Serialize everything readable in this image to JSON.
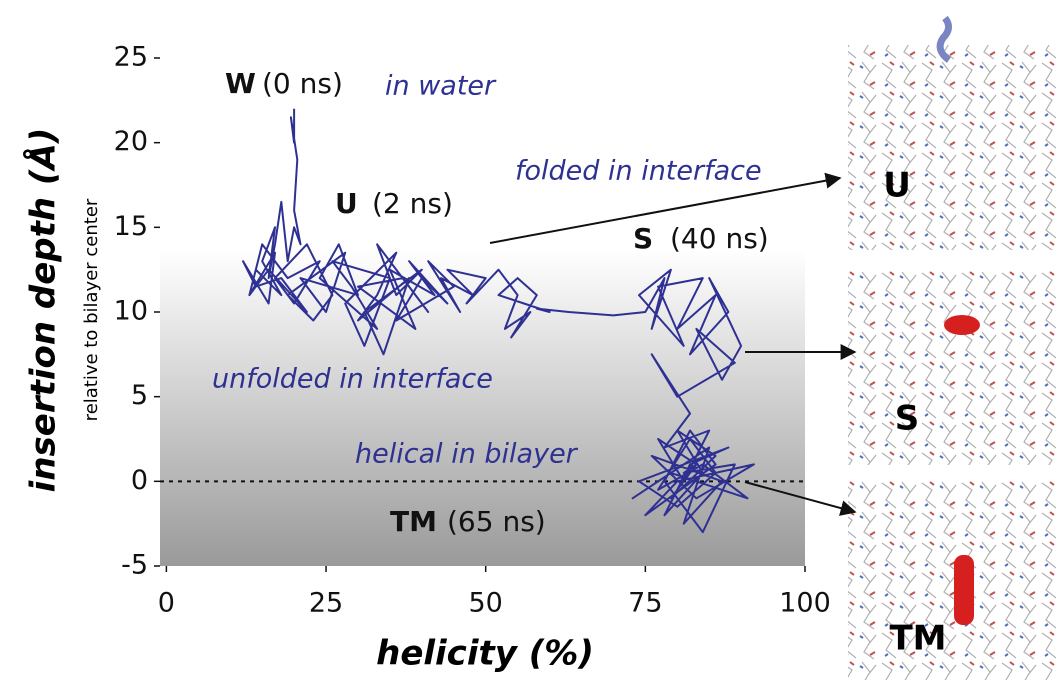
{
  "chart_data": {
    "type": "line",
    "xlabel": "helicity (%)",
    "ylabel": "insertion depth (Å)",
    "ylabel_sub": "relative to bilayer center",
    "color": "#2e3192",
    "xlim": [
      -1,
      100
    ],
    "ylim": [
      -5,
      25
    ],
    "xticks": [
      0,
      25,
      50,
      75,
      100
    ],
    "yticks": [
      -5,
      0,
      5,
      10,
      15,
      20,
      25
    ],
    "reference_line": 0,
    "x": [
      20,
      20,
      19.5,
      20.5,
      20,
      21,
      20,
      19,
      18,
      17,
      16,
      17,
      15,
      18,
      14,
      13,
      17,
      16,
      12,
      14,
      18,
      22,
      16,
      13,
      15,
      19,
      24,
      20,
      17,
      22,
      26,
      23,
      19,
      28,
      25,
      21,
      30,
      27,
      24,
      33,
      29,
      26,
      35,
      31,
      28,
      36,
      33,
      30,
      38,
      34,
      31,
      40,
      36,
      33,
      41,
      37,
      30,
      39,
      35,
      42,
      38,
      44,
      40,
      36,
      45,
      41,
      46,
      43,
      48,
      44,
      50,
      47,
      52,
      55,
      53,
      57,
      54,
      58,
      55,
      52,
      56,
      60,
      58,
      63,
      70,
      75,
      78,
      76,
      79,
      74,
      81,
      77,
      84,
      80,
      86,
      82,
      88,
      85,
      90,
      87,
      83,
      89,
      80,
      76,
      82,
      78,
      85,
      81,
      77,
      83,
      79,
      86,
      80,
      84,
      78,
      82,
      88,
      74,
      80,
      86,
      82,
      77,
      84,
      91,
      79,
      73,
      85,
      81,
      87,
      76,
      83,
      92,
      80,
      75,
      86,
      82,
      78,
      84,
      89,
      81,
      83
    ],
    "values": [
      22,
      20,
      21.5,
      19,
      16,
      14,
      15,
      13,
      16.5,
      14,
      12,
      15,
      13,
      11,
      12.5,
      11,
      13.5,
      10.5,
      13,
      11.5,
      12,
      10,
      12.5,
      11,
      14,
      12,
      13,
      10.5,
      12,
      14,
      11,
      9.5,
      11,
      13.5,
      10,
      12,
      11,
      14,
      12,
      9,
      11.5,
      13,
      12,
      8,
      10.5,
      13.5,
      11,
      9.5,
      12,
      7.5,
      10,
      12.5,
      11,
      14,
      10,
      12,
      11.5,
      9,
      12.5,
      11,
      13,
      10.5,
      12,
      9.5,
      11.5,
      13,
      10,
      12,
      11,
      12.5,
      12,
      10.5,
      12.5,
      11,
      9,
      10,
      8.5,
      11,
      12,
      11,
      10.5,
      10,
      10.2,
      10,
      9.8,
      10,
      12,
      9,
      12.5,
      11,
      8,
      11.5,
      12,
      9,
      11,
      7.5,
      10,
      12,
      8,
      6,
      9,
      7,
      5,
      7.5,
      4,
      2,
      3,
      0,
      2.5,
      1,
      -1,
      1.5,
      3,
      0.5,
      -2,
      1,
      2,
      0,
      -1.5,
      0.5,
      2.5,
      -0.5,
      1,
      -1,
      0.5,
      -1,
      2,
      -2.5,
      0,
      1.5,
      -1,
      1,
      0,
      -2,
      1,
      3,
      0,
      -3,
      1,
      0.5,
      1
    ],
    "annotations": [
      "W",
      "(0 ns)",
      "in water",
      "U",
      "(2 ns)",
      "folded in interface",
      "S",
      "(40 ns)",
      "unfolded in interface",
      "helical in bilayer",
      "TM",
      "(65 ns)"
    ],
    "panels": [
      "U",
      "S",
      "TM"
    ]
  }
}
